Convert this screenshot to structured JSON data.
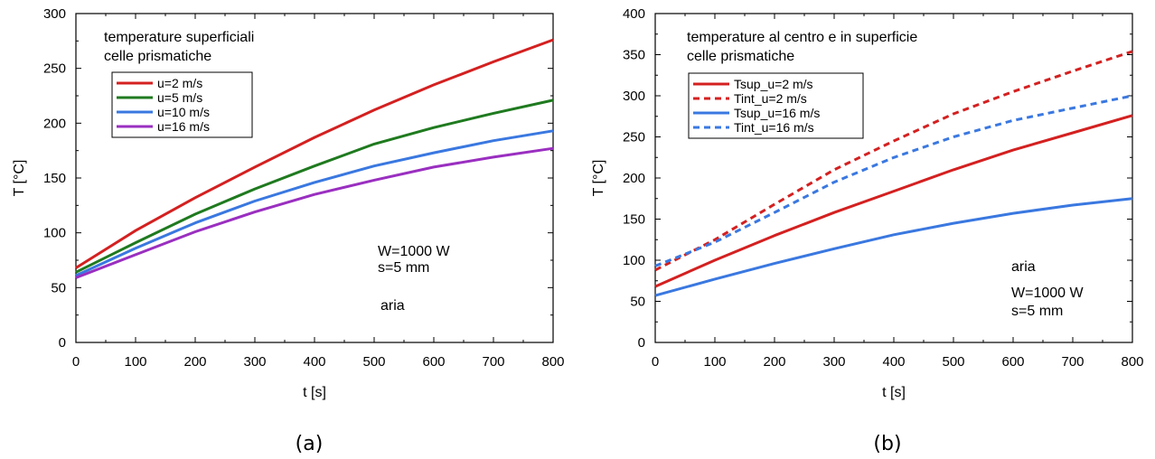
{
  "chart_data": [
    {
      "type": "line",
      "panel_label": "(a)",
      "xlabel": "t [s]",
      "ylabel": "T [°C]",
      "xlim": [
        0,
        800
      ],
      "ylim": [
        0,
        300
      ],
      "xticks": [
        "0",
        "100",
        "200",
        "300",
        "400",
        "500",
        "600",
        "700",
        "800"
      ],
      "yticks": [
        "0",
        "50",
        "100",
        "150",
        "200",
        "250",
        "300"
      ],
      "annotations": [
        "temperature superficiali",
        "celle prismatiche",
        "W=1000 W",
        "s=5 mm",
        "aria"
      ],
      "x": [
        0,
        100,
        200,
        300,
        400,
        500,
        600,
        700,
        800
      ],
      "series": [
        {
          "name": "u=2 m/s",
          "color": "#d42020",
          "dash": false,
          "values": [
            68,
            102,
            132,
            160,
            187,
            212,
            235,
            256,
            276
          ]
        },
        {
          "name": "u=5 m/s",
          "color": "#1f7a1f",
          "dash": false,
          "values": [
            64,
            91,
            117,
            140,
            161,
            181,
            196,
            209,
            221
          ]
        },
        {
          "name": "u=10 m/s",
          "color": "#3a78e0",
          "dash": false,
          "values": [
            61,
            86,
            109,
            129,
            146,
            161,
            173,
            184,
            193
          ]
        },
        {
          "name": "u=16 m/s",
          "color": "#9a2fc0",
          "dash": false,
          "values": [
            59,
            80,
            101,
            119,
            135,
            148,
            160,
            169,
            177
          ]
        }
      ]
    },
    {
      "type": "line",
      "panel_label": "(b)",
      "xlabel": "t [s]",
      "ylabel": "T [°C]",
      "xlim": [
        0,
        800
      ],
      "ylim": [
        0,
        400
      ],
      "xticks": [
        "0",
        "100",
        "200",
        "300",
        "400",
        "500",
        "600",
        "700",
        "800"
      ],
      "yticks": [
        "0",
        "50",
        "100",
        "150",
        "200",
        "250",
        "300",
        "350",
        "400"
      ],
      "annotations": [
        "temperature al centro e in superficie",
        "celle prismatiche",
        "aria",
        "W=1000 W",
        "s=5 mm"
      ],
      "x": [
        0,
        100,
        200,
        300,
        400,
        500,
        600,
        700,
        800
      ],
      "series": [
        {
          "name": "Tsup_u=2 m/s",
          "color": "#d42020",
          "dash": false,
          "values": [
            68,
            100,
            130,
            158,
            184,
            210,
            234,
            255,
            276
          ]
        },
        {
          "name": "Tint_u=2 m/s",
          "color": "#d42020",
          "dash": true,
          "values": [
            88,
            125,
            168,
            210,
            245,
            278,
            305,
            330,
            354
          ]
        },
        {
          "name": "Tsup_u=16 m/s",
          "color": "#3a78e0",
          "dash": false,
          "values": [
            57,
            77,
            96,
            114,
            131,
            145,
            157,
            167,
            175
          ]
        },
        {
          "name": "Tint_u=16 m/s",
          "color": "#3a78e0",
          "dash": true,
          "values": [
            93,
            122,
            158,
            195,
            225,
            250,
            270,
            285,
            300
          ]
        }
      ]
    }
  ]
}
